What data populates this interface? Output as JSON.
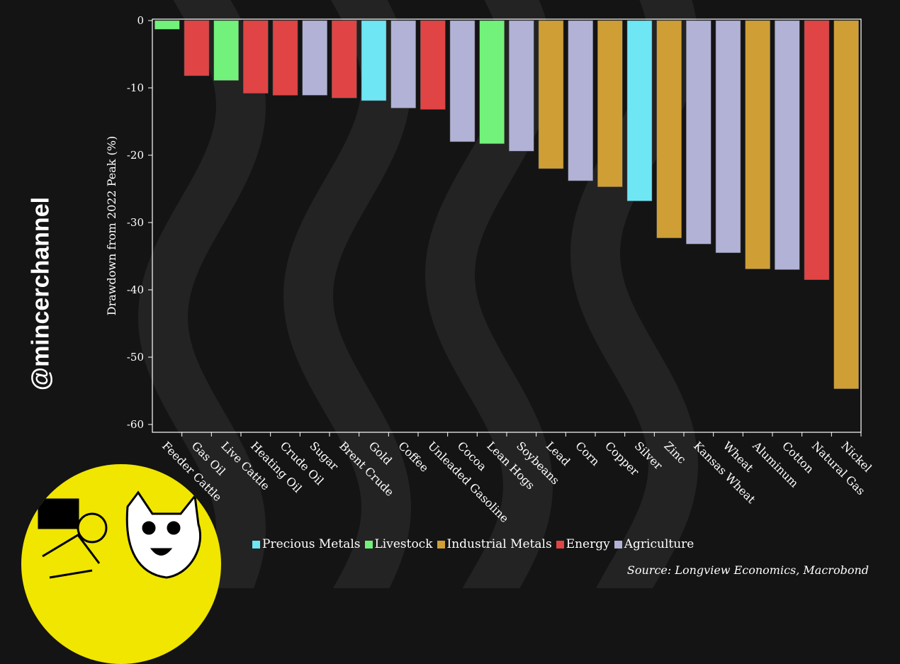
{
  "watermark": "@mincerchannel",
  "chart_data": {
    "type": "bar",
    "ylabel": "Drawdown from 2022 Peak (%)",
    "xlabel": "",
    "ylim": [
      -61,
      0
    ],
    "yticks": [
      0,
      -10,
      -20,
      -30,
      -40,
      -50,
      -60
    ],
    "grid": false,
    "legend_position": "bottom",
    "categories": [
      "Feeder Cattle",
      "Gas Oil",
      "Live Cattle",
      "Heating Oil",
      "Crude Oil",
      "Sugar",
      "Brent Crude",
      "Gold",
      "Coffee",
      "Unleaded Gasoline",
      "Cocoa",
      "Lean Hogs",
      "Soybeans",
      "Lead",
      "Corn",
      "Copper",
      "Silver",
      "Zinc",
      "Kansas Wheat",
      "Wheat",
      "Aluminum",
      "Cotton",
      "Natural Gas",
      "Nickel"
    ],
    "values": [
      -1.3,
      -8.2,
      -8.9,
      -10.8,
      -11.1,
      -11.1,
      -11.5,
      -11.9,
      -13.0,
      -13.2,
      -18.0,
      -18.3,
      -19.4,
      -22.0,
      -23.8,
      -24.7,
      -26.8,
      -32.3,
      -33.2,
      -34.5,
      -36.9,
      -37.0,
      -38.5,
      -54.7
    ],
    "groups": [
      "Livestock",
      "Energy",
      "Livestock",
      "Energy",
      "Energy",
      "Agriculture",
      "Energy",
      "Precious Metals",
      "Agriculture",
      "Energy",
      "Agriculture",
      "Livestock",
      "Agriculture",
      "Industrial Metals",
      "Agriculture",
      "Industrial Metals",
      "Precious Metals",
      "Industrial Metals",
      "Agriculture",
      "Agriculture",
      "Industrial Metals",
      "Agriculture",
      "Energy",
      "Industrial Metals"
    ],
    "legend": [
      {
        "name": "Precious Metals",
        "color": "#6ee6f4"
      },
      {
        "name": "Livestock",
        "color": "#72f27a"
      },
      {
        "name": "Industrial Metals",
        "color": "#cf9f36"
      },
      {
        "name": "Energy",
        "color": "#e04444"
      },
      {
        "name": "Agriculture",
        "color": "#b1b2d6"
      }
    ]
  },
  "source": "Source: Longview Economics, Macrobond"
}
